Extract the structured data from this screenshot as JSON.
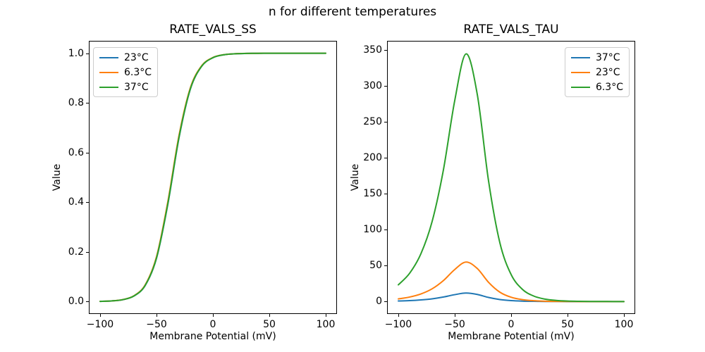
{
  "figure": {
    "suptitle": "n for different temperatures",
    "background": "#ffffff",
    "axes_color": "#000000"
  },
  "chart_data": [
    {
      "type": "line",
      "title": "RATE_VALS_SS",
      "xlabel": "Membrane Potential (mV)",
      "ylabel": "Value",
      "grid": false,
      "legend_position": "upper-left",
      "xlim": [
        -110,
        110
      ],
      "ylim": [
        -0.05,
        1.05
      ],
      "xticks": [
        -100,
        -50,
        0,
        50,
        100
      ],
      "xtick_labels": [
        "−100",
        "−50",
        "0",
        "50",
        "100"
      ],
      "yticks": [
        0,
        0.2,
        0.4,
        0.6,
        0.8,
        1.0
      ],
      "ytick_labels": [
        "0.0",
        "0.2",
        "0.4",
        "0.6",
        "0.8",
        "1.0"
      ],
      "x": [
        -100,
        -90,
        -80,
        -70,
        -60,
        -50,
        -40,
        -30,
        -20,
        -10,
        0,
        10,
        20,
        30,
        40,
        50,
        60,
        70,
        80,
        90,
        100
      ],
      "series": [
        {
          "name": "23°C",
          "color": "#1f77b4",
          "values": [
            0.0008,
            0.0025,
            0.0075,
            0.0224,
            0.065,
            0.1743,
            0.3906,
            0.6608,
            0.8554,
            0.9474,
            0.982,
            0.994,
            0.998,
            0.9993,
            0.9998,
            0.9999,
            1.0,
            1.0,
            1.0,
            1.0,
            1.0
          ]
        },
        {
          "name": "6.3°C",
          "color": "#ff7f0e",
          "values": [
            0.0009,
            0.0026,
            0.0078,
            0.0234,
            0.0677,
            0.1808,
            0.4013,
            0.6706,
            0.8608,
            0.9495,
            0.9828,
            0.9943,
            0.9981,
            0.9994,
            0.9998,
            0.9999,
            1.0,
            1.0,
            1.0,
            1.0,
            1.0
          ]
        },
        {
          "name": "37°C",
          "color": "#2ca02c",
          "values": [
            0.0008,
            0.0025,
            0.0076,
            0.0226,
            0.0656,
            0.1759,
            0.3933,
            0.6632,
            0.8568,
            0.9476,
            0.9821,
            0.994,
            0.998,
            0.9993,
            0.9998,
            0.9999,
            1.0,
            1.0,
            1.0,
            1.0,
            1.0
          ]
        }
      ]
    },
    {
      "type": "line",
      "title": "RATE_VALS_TAU",
      "xlabel": "Membrane Potential (mV)",
      "ylabel": "Value",
      "grid": false,
      "legend_position": "upper-right",
      "xlim": [
        -110,
        110
      ],
      "ylim": [
        -17.3,
        363
      ],
      "xticks": [
        -100,
        -50,
        0,
        50,
        100
      ],
      "xtick_labels": [
        "−100",
        "−50",
        "0",
        "50",
        "100"
      ],
      "yticks": [
        0,
        50,
        100,
        150,
        200,
        250,
        300,
        350
      ],
      "ytick_labels": [
        "0",
        "50",
        "100",
        "150",
        "200",
        "250",
        "300",
        "350"
      ],
      "x": [
        -100,
        -90,
        -80,
        -70,
        -60,
        -50,
        -40,
        -30,
        -20,
        -10,
        0,
        10,
        20,
        30,
        40,
        50,
        60,
        70,
        80,
        90,
        100
      ],
      "series": [
        {
          "name": "37°C",
          "color": "#1f77b4",
          "values": [
            0.8,
            1.3,
            2.3,
            3.8,
            6.3,
            9.6,
            11.8,
            9.9,
            5.7,
            2.8,
            1.3,
            0.6,
            0.3,
            0.1,
            0.1,
            0,
            0,
            0,
            0,
            0,
            0
          ]
        },
        {
          "name": "23°C",
          "color": "#ff7f0e",
          "values": [
            3.7,
            6.3,
            10.6,
            17.8,
            29.3,
            44.6,
            55,
            46,
            26.8,
            13.1,
            6,
            2.7,
            1.2,
            0.5,
            0.2,
            0.1,
            0,
            0,
            0,
            0,
            0
          ]
        },
        {
          "name": "6.3°C",
          "color": "#2ca02c",
          "values": [
            23.3,
            39.4,
            66.5,
            111.7,
            183.6,
            279.8,
            344.8,
            288.3,
            167.8,
            81.9,
            37.6,
            17,
            7.7,
            3.4,
            1.6,
            0.7,
            0.3,
            0.1,
            0.1,
            0,
            0
          ]
        }
      ]
    }
  ]
}
